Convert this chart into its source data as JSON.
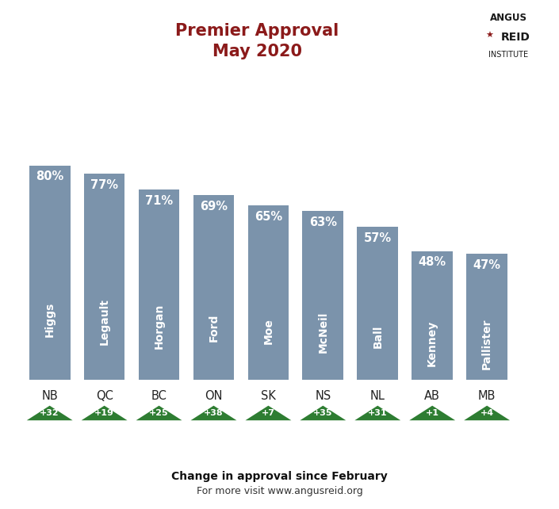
{
  "title_line1": "Premier Approval",
  "title_line2": "May 2020",
  "title_color": "#8B1A1A",
  "bars": [
    {
      "province": "NB",
      "premier": "Higgs",
      "pct": 80,
      "change": 32
    },
    {
      "province": "QC",
      "premier": "Legault",
      "pct": 77,
      "change": 19
    },
    {
      "province": "BC",
      "premier": "Horgan",
      "pct": 71,
      "change": 25
    },
    {
      "province": "ON",
      "premier": "Ford",
      "pct": 69,
      "change": 38
    },
    {
      "province": "SK",
      "premier": "Moe",
      "pct": 65,
      "change": 7
    },
    {
      "province": "NS",
      "premier": "McNeil",
      "pct": 63,
      "change": 35
    },
    {
      "province": "NL",
      "premier": "Ball",
      "pct": 57,
      "change": 31
    },
    {
      "province": "AB",
      "premier": "Kenney",
      "pct": 48,
      "change": 1
    },
    {
      "province": "MB",
      "premier": "Pallister",
      "pct": 47,
      "change": 4
    }
  ],
  "bar_color": "#7B93AB",
  "bar_text_color": "#FFFFFF",
  "province_text_color": "#222222",
  "triangle_color": "#2E7D32",
  "triangle_text_color": "#FFFFFF",
  "footer_bold": "Change in approval since February",
  "footer_normal": "For more visit www.angusreid.org",
  "background_color": "#FFFFFF",
  "angus_reid_black": "#1A1A1A",
  "angus_reid_red": "#8B1A1A",
  "fig_width": 7.05,
  "fig_height": 6.42,
  "dpi": 100
}
